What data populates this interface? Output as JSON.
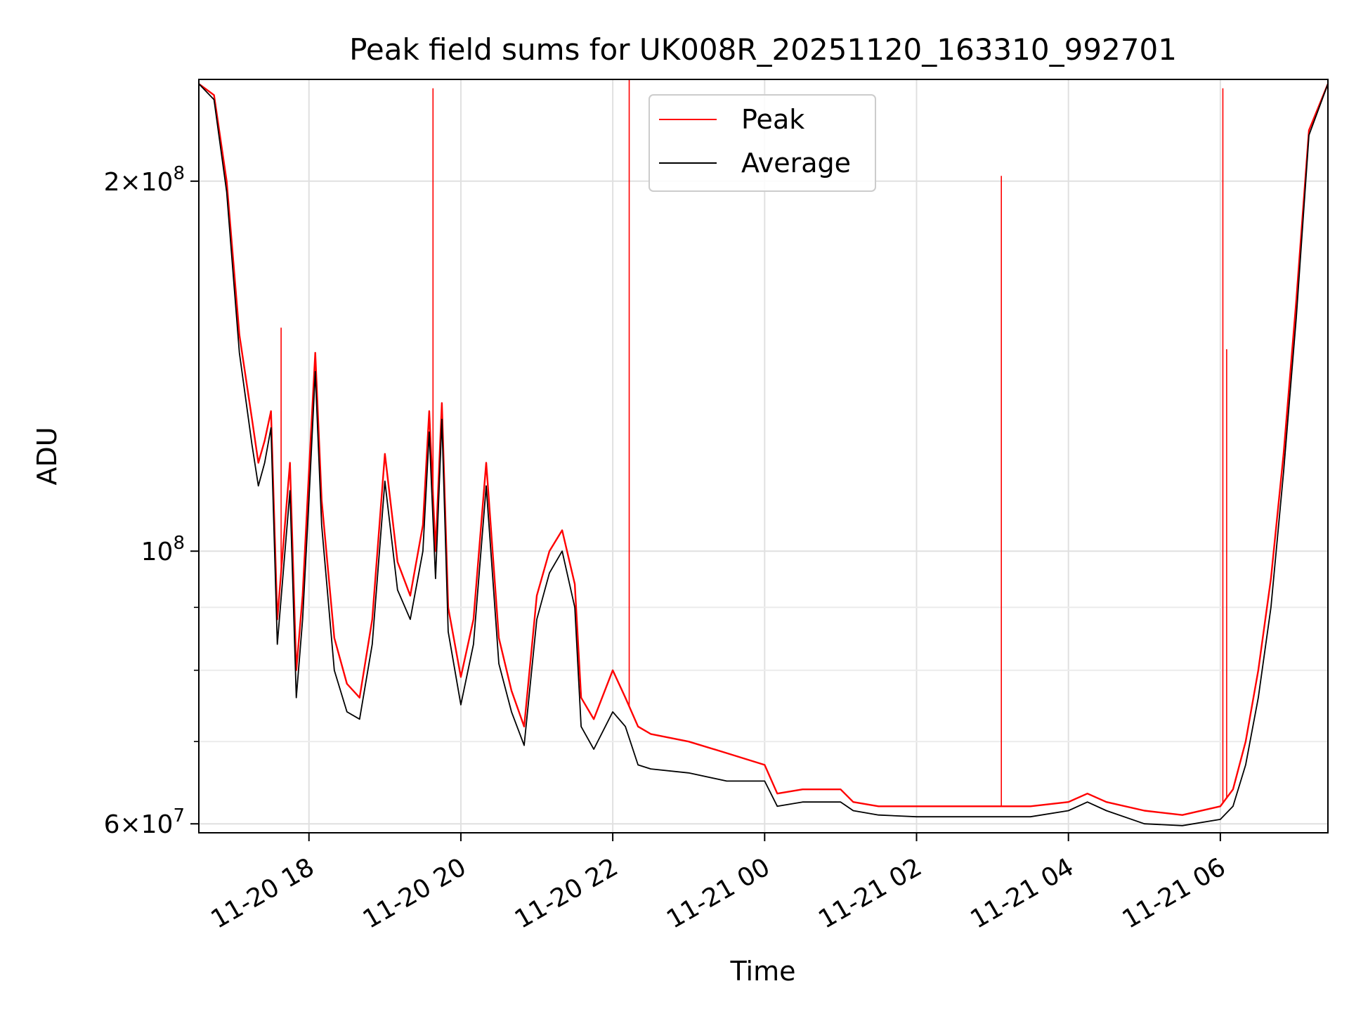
{
  "chart_data": {
    "type": "line",
    "title": "Peak field sums for UK008R_20251120_163310_992701",
    "xlabel": "Time",
    "ylabel": "ADU",
    "yscale": "log",
    "grid": true,
    "legend": {
      "placement": "top-center",
      "entries": [
        "Peak",
        "Average"
      ]
    },
    "ylim": [
      59000000,
      242000000
    ],
    "xlim": [
      "2025-11-20 16:33",
      "2025-11-21 07:25"
    ],
    "x_ticks": [
      "11-20 18",
      "11-20 20",
      "11-20 22",
      "11-21 00",
      "11-21 02",
      "11-21 04",
      "11-21 06"
    ],
    "x_tick_values": [
      "2025-11-20 18:00",
      "2025-11-20 20:00",
      "2025-11-20 22:00",
      "2025-11-21 00:00",
      "2025-11-21 02:00",
      "2025-11-21 04:00",
      "2025-11-21 06:00"
    ],
    "y_ticks": [
      {
        "value": 200000000,
        "mantissa": "2×10",
        "exp": "8"
      },
      {
        "value": 100000000,
        "mantissa": "10",
        "exp": "8"
      },
      {
        "value": 60000000,
        "mantissa": "6×10",
        "exp": "7"
      }
    ],
    "y_minor_ticks": [
      70000000,
      80000000,
      90000000
    ],
    "series": [
      {
        "name": "Peak",
        "color": "#ff0000",
        "x": [
          "2025-11-20 16:33",
          "2025-11-20 16:45",
          "2025-11-20 16:55",
          "2025-11-20 17:05",
          "2025-11-20 17:15",
          "2025-11-20 17:20",
          "2025-11-20 17:25",
          "2025-11-20 17:30",
          "2025-11-20 17:35",
          "2025-11-20 17:40",
          "2025-11-20 17:45",
          "2025-11-20 17:50",
          "2025-11-20 17:55",
          "2025-11-20 18:00",
          "2025-11-20 18:05",
          "2025-11-20 18:10",
          "2025-11-20 18:20",
          "2025-11-20 18:30",
          "2025-11-20 18:40",
          "2025-11-20 18:50",
          "2025-11-20 19:00",
          "2025-11-20 19:10",
          "2025-11-20 19:20",
          "2025-11-20 19:30",
          "2025-11-20 19:35",
          "2025-11-20 19:40",
          "2025-11-20 19:45",
          "2025-11-20 19:50",
          "2025-11-20 20:00",
          "2025-11-20 20:10",
          "2025-11-20 20:20",
          "2025-11-20 20:30",
          "2025-11-20 20:40",
          "2025-11-20 20:50",
          "2025-11-20 21:00",
          "2025-11-20 21:10",
          "2025-11-20 21:20",
          "2025-11-20 21:30",
          "2025-11-20 21:35",
          "2025-11-20 21:45",
          "2025-11-20 22:00",
          "2025-11-20 22:10",
          "2025-11-20 22:20",
          "2025-11-20 22:30",
          "2025-11-20 23:00",
          "2025-11-20 23:30",
          "2025-11-21 00:00",
          "2025-11-21 00:10",
          "2025-11-21 00:30",
          "2025-11-21 01:00",
          "2025-11-21 01:10",
          "2025-11-21 01:30",
          "2025-11-21 02:00",
          "2025-11-21 02:30",
          "2025-11-21 03:00",
          "2025-11-21 03:30",
          "2025-11-21 04:00",
          "2025-11-21 04:15",
          "2025-11-21 04:30",
          "2025-11-21 05:00",
          "2025-11-21 05:30",
          "2025-11-21 06:00",
          "2025-11-21 06:10",
          "2025-11-21 06:20",
          "2025-11-21 06:30",
          "2025-11-21 06:40",
          "2025-11-21 06:50",
          "2025-11-21 07:00",
          "2025-11-21 07:10",
          "2025-11-21 07:25"
        ],
        "values": [
          240000000,
          235000000,
          200000000,
          150000000,
          128000000,
          118000000,
          123000000,
          130000000,
          88000000,
          102000000,
          118000000,
          80000000,
          92000000,
          116000000,
          145000000,
          110000000,
          85000000,
          78000000,
          76000000,
          88000000,
          120000000,
          98000000,
          92000000,
          105000000,
          130000000,
          100000000,
          132000000,
          90000000,
          79000000,
          88000000,
          118000000,
          85000000,
          77000000,
          72000000,
          92000000,
          100000000,
          104000000,
          94000000,
          76000000,
          73000000,
          80000000,
          76000000,
          72000000,
          71000000,
          70000000,
          68500000,
          67000000,
          63500000,
          64000000,
          64000000,
          62500000,
          62000000,
          62000000,
          62000000,
          62000000,
          62000000,
          62500000,
          63500000,
          62500000,
          61500000,
          61000000,
          62000000,
          64000000,
          70000000,
          80000000,
          95000000,
          120000000,
          160000000,
          220000000,
          240000000
        ]
      },
      {
        "name": "Average",
        "color": "#000000",
        "x": [
          "2025-11-20 16:33",
          "2025-11-20 16:45",
          "2025-11-20 16:55",
          "2025-11-20 17:05",
          "2025-11-20 17:15",
          "2025-11-20 17:20",
          "2025-11-20 17:25",
          "2025-11-20 17:30",
          "2025-11-20 17:35",
          "2025-11-20 17:40",
          "2025-11-20 17:45",
          "2025-11-20 17:50",
          "2025-11-20 17:55",
          "2025-11-20 18:00",
          "2025-11-20 18:05",
          "2025-11-20 18:10",
          "2025-11-20 18:20",
          "2025-11-20 18:30",
          "2025-11-20 18:40",
          "2025-11-20 18:50",
          "2025-11-20 19:00",
          "2025-11-20 19:10",
          "2025-11-20 19:20",
          "2025-11-20 19:30",
          "2025-11-20 19:35",
          "2025-11-20 19:40",
          "2025-11-20 19:45",
          "2025-11-20 19:50",
          "2025-11-20 20:00",
          "2025-11-20 20:10",
          "2025-11-20 20:20",
          "2025-11-20 20:30",
          "2025-11-20 20:40",
          "2025-11-20 20:50",
          "2025-11-20 21:00",
          "2025-11-20 21:10",
          "2025-11-20 21:20",
          "2025-11-20 21:30",
          "2025-11-20 21:35",
          "2025-11-20 21:45",
          "2025-11-20 22:00",
          "2025-11-20 22:10",
          "2025-11-20 22:20",
          "2025-11-20 22:30",
          "2025-11-20 23:00",
          "2025-11-20 23:30",
          "2025-11-21 00:00",
          "2025-11-21 00:10",
          "2025-11-21 00:30",
          "2025-11-21 01:00",
          "2025-11-21 01:10",
          "2025-11-21 01:30",
          "2025-11-21 02:00",
          "2025-11-21 02:30",
          "2025-11-21 03:00",
          "2025-11-21 03:30",
          "2025-11-21 04:00",
          "2025-11-21 04:15",
          "2025-11-21 04:30",
          "2025-11-21 05:00",
          "2025-11-21 05:30",
          "2025-11-21 06:00",
          "2025-11-21 06:10",
          "2025-11-21 06:20",
          "2025-11-21 06:30",
          "2025-11-21 06:40",
          "2025-11-21 06:50",
          "2025-11-21 07:00",
          "2025-11-21 07:10",
          "2025-11-21 07:25"
        ],
        "values": [
          240000000,
          233000000,
          196000000,
          145000000,
          122000000,
          113000000,
          118000000,
          126000000,
          84000000,
          97000000,
          112000000,
          76000000,
          88000000,
          110000000,
          140000000,
          105000000,
          80000000,
          74000000,
          73000000,
          84000000,
          114000000,
          93000000,
          88000000,
          100000000,
          125000000,
          95000000,
          128000000,
          86000000,
          75000000,
          84000000,
          113000000,
          81000000,
          74000000,
          69500000,
          88000000,
          96000000,
          100000000,
          90000000,
          72000000,
          69000000,
          74000000,
          72000000,
          67000000,
          66500000,
          66000000,
          65000000,
          65000000,
          62000000,
          62500000,
          62500000,
          61500000,
          61000000,
          60800000,
          60800000,
          60800000,
          60800000,
          61500000,
          62500000,
          61500000,
          60000000,
          59800000,
          60500000,
          62000000,
          67000000,
          76000000,
          90000000,
          116000000,
          155000000,
          218000000,
          240000000
        ]
      }
    ],
    "spikes": [
      {
        "series": "Peak",
        "x": "2025-11-20 17:38",
        "top": 152000000
      },
      {
        "series": "Peak",
        "x": "2025-11-20 19:38",
        "top": 238000000
      },
      {
        "series": "Peak",
        "x": "2025-11-20 22:13",
        "top": 242000000
      },
      {
        "series": "Peak",
        "x": "2025-11-21 03:07",
        "top": 202000000
      },
      {
        "series": "Peak",
        "x": "2025-11-21 06:02",
        "top": 238000000
      },
      {
        "series": "Peak",
        "x": "2025-11-21 06:05",
        "top": 146000000
      }
    ]
  }
}
